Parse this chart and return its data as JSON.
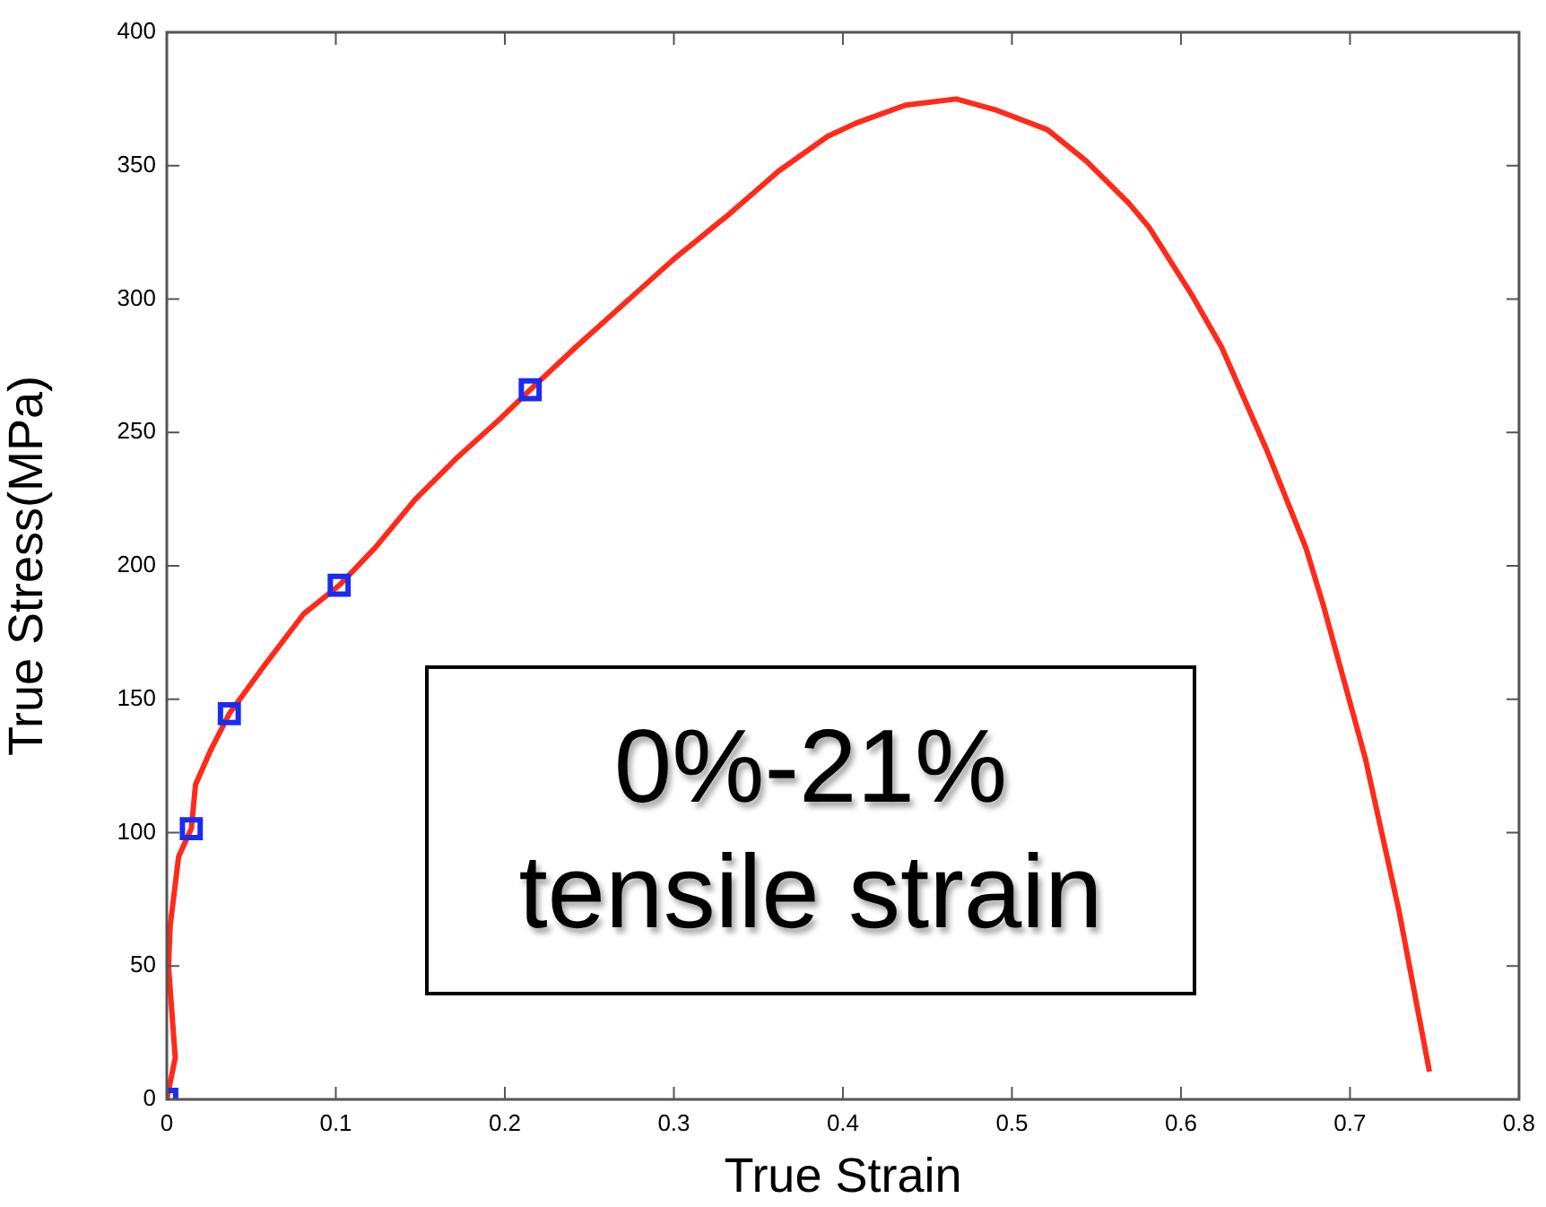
{
  "chart_data": {
    "type": "line",
    "xlabel": "True Strain",
    "ylabel": "True Stress(MPa)",
    "xlim": [
      0,
      0.8
    ],
    "xticks": [
      0,
      0.1,
      0.2,
      0.3,
      0.4,
      0.5,
      0.6,
      0.7,
      0.8
    ],
    "ylim": [
      0,
      400
    ],
    "yticks": [
      0,
      50,
      100,
      150,
      200,
      250,
      300,
      350,
      400
    ],
    "grid": false,
    "legend": false,
    "line_style": "solid",
    "annotations": [
      "0%-21%\ntensile strain"
    ],
    "series": [
      {
        "color": "#ff2a1a",
        "marker": "none",
        "x": [
          0,
          0.005,
          0.001,
          0.002,
          0.007,
          0.0145,
          0.017,
          0.026,
          0.037,
          0.057,
          0.081,
          0.102,
          0.123,
          0.147,
          0.172,
          0.197,
          0.215,
          0.242,
          0.275,
          0.3,
          0.333,
          0.362,
          0.391,
          0.408,
          0.437,
          0.467,
          0.49,
          0.521,
          0.544,
          0.569,
          0.581,
          0.606,
          0.624,
          0.651,
          0.674,
          0.684,
          0.709,
          0.729,
          0.747
        ],
        "values": [
          0,
          15.6,
          50,
          65,
          91,
          101.5,
          118,
          131,
          144.6,
          162,
          182,
          192.7,
          206.6,
          224.9,
          240.7,
          255,
          266,
          282,
          300.8,
          315,
          332,
          348,
          361,
          366,
          372.7,
          375,
          371,
          363.5,
          351.7,
          336,
          327,
          302,
          282,
          243,
          206.6,
          185.7,
          128,
          70.6,
          10.4
        ]
      },
      {
        "type": "scatter",
        "color": "#1a2cf0",
        "marker": "square",
        "x": [
          0,
          0.0145,
          0.037,
          0.102,
          0.215
        ],
        "values": [
          0,
          101.5,
          144.6,
          192.7,
          266
        ]
      }
    ]
  }
}
